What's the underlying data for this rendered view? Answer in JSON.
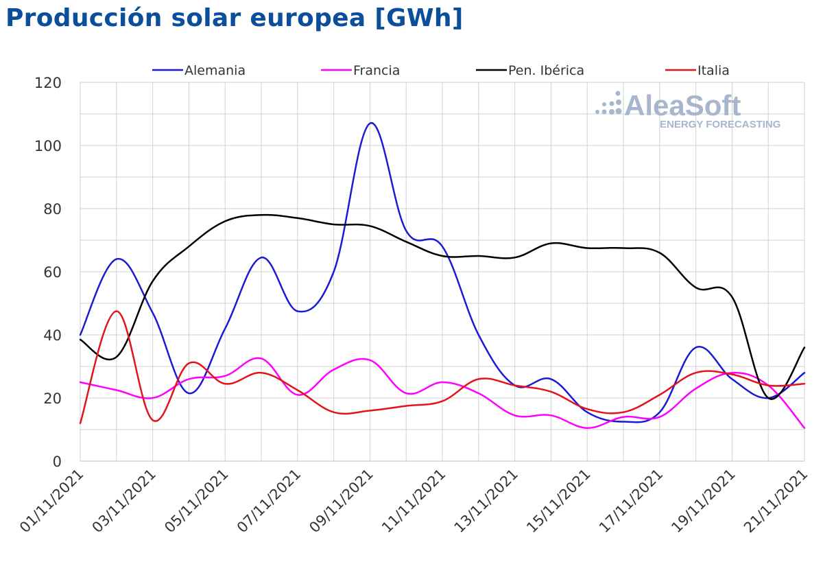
{
  "chart_data": {
    "type": "line",
    "title": "Producción solar europea [GWh]",
    "xlabel": "",
    "ylabel": "",
    "ylim": [
      0,
      120
    ],
    "y_ticks": [
      "0",
      "20",
      "40",
      "60",
      "80",
      "100",
      "120"
    ],
    "x_tick_labels": [
      "01/11/2021",
      "03/11/2021",
      "05/11/2021",
      "07/11/2021",
      "09/11/2021",
      "11/11/2021",
      "13/11/2021",
      "15/11/2021",
      "17/11/2021",
      "19/11/2021",
      "21/11/2021"
    ],
    "categories": [
      "01/11/2021",
      "02/11/2021",
      "03/11/2021",
      "04/11/2021",
      "05/11/2021",
      "06/11/2021",
      "07/11/2021",
      "08/11/2021",
      "09/11/2021",
      "10/11/2021",
      "11/11/2021",
      "12/11/2021",
      "13/11/2021",
      "14/11/2021",
      "15/11/2021",
      "16/11/2021",
      "17/11/2021",
      "18/11/2021",
      "19/11/2021",
      "20/11/2021",
      "21/11/2021"
    ],
    "legend_position": "top",
    "grid": true,
    "series": [
      {
        "name": "Alemania",
        "color": "#1a1ad6",
        "values": [
          40,
          64,
          47,
          21.5,
          42,
          64.5,
          47.5,
          60,
          107,
          73,
          68,
          40,
          24,
          26,
          15.5,
          12.5,
          15.5,
          36,
          26,
          20,
          28
        ]
      },
      {
        "name": "Francia",
        "color": "#ff00ff",
        "values": [
          25,
          22.5,
          20,
          26,
          27,
          32.5,
          21,
          29,
          32,
          21.5,
          25,
          21.5,
          14.5,
          14.5,
          10.5,
          14,
          14,
          23,
          28,
          24,
          10.5
        ]
      },
      {
        "name": "Pen. Ibérica",
        "color": "#000000",
        "values": [
          38.5,
          33,
          57,
          68,
          76,
          78,
          77,
          75,
          74.5,
          69.5,
          65,
          65,
          64.5,
          69,
          67.5,
          67.5,
          66,
          55,
          52,
          20,
          36
        ]
      },
      {
        "name": "Italia",
        "color": "#e3121b",
        "values": [
          12,
          47.5,
          13,
          31,
          24.5,
          28,
          22.5,
          15.5,
          16,
          17.5,
          19,
          26,
          24,
          22,
          16.5,
          15.5,
          21,
          28,
          27.5,
          24,
          24.5
        ]
      }
    ]
  },
  "logo": {
    "main": "AleaSoft",
    "sub": "ENERGY FORECASTING"
  }
}
